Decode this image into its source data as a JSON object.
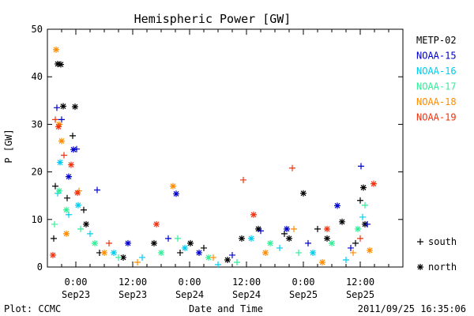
{
  "chart_data": {
    "type": "scatter",
    "title": "Hemispheric Power [GW]",
    "ylabel": "P [GW]",
    "xlabel": "Date and Time",
    "ylim": [
      0,
      50
    ],
    "yticks": [
      0,
      10,
      20,
      30,
      40,
      50
    ],
    "xlim": [
      "2011-09-22 18:00",
      "2011-09-25 21:00"
    ],
    "xticks": [
      {
        "t": "2011-09-23 00:00",
        "time": "0:00",
        "date": "Sep23"
      },
      {
        "t": "2011-09-23 12:00",
        "time": "12:00",
        "date": "Sep23"
      },
      {
        "t": "2011-09-24 00:00",
        "time": "0:00",
        "date": "Sep24"
      },
      {
        "t": "2011-09-24 12:00",
        "time": "12:00",
        "date": "Sep24"
      },
      {
        "t": "2011-09-25 00:00",
        "time": "0:00",
        "date": "Sep25"
      },
      {
        "t": "2011-09-25 12:00",
        "time": "12:00",
        "date": "Sep25"
      }
    ],
    "grid": false,
    "legend_position": "right",
    "marker_legend": [
      {
        "marker": "plus",
        "label": "south"
      },
      {
        "marker": "asterisk",
        "label": "north"
      }
    ],
    "series": [
      {
        "name": "METP-02",
        "color": "#000000",
        "points": [
          {
            "x": "2011-09-22 19:20",
            "y": 6,
            "m": "s"
          },
          {
            "x": "2011-09-22 19:40",
            "y": 17,
            "m": "s"
          },
          {
            "x": "2011-09-22 20:10",
            "y": 42.7,
            "m": "n"
          },
          {
            "x": "2011-09-22 20:50",
            "y": 42.6,
            "m": "n"
          },
          {
            "x": "2011-09-22 21:20",
            "y": 33.8,
            "m": "n"
          },
          {
            "x": "2011-09-22 22:10",
            "y": 14.5,
            "m": "s"
          },
          {
            "x": "2011-09-22 23:20",
            "y": 27.6,
            "m": "s"
          },
          {
            "x": "2011-09-22 23:50",
            "y": 33.7,
            "m": "n"
          },
          {
            "x": "2011-09-23 01:40",
            "y": 12,
            "m": "s"
          },
          {
            "x": "2011-09-23 02:10",
            "y": 9,
            "m": "n"
          },
          {
            "x": "2011-09-23 05:00",
            "y": 3,
            "m": "s"
          },
          {
            "x": "2011-09-23 10:00",
            "y": 2,
            "m": "n"
          },
          {
            "x": "2011-09-23 16:30",
            "y": 5,
            "m": "n"
          },
          {
            "x": "2011-09-23 22:00",
            "y": 3,
            "m": "s"
          },
          {
            "x": "2011-09-24 00:10",
            "y": 5,
            "m": "n"
          },
          {
            "x": "2011-09-24 03:00",
            "y": 4,
            "m": "s"
          },
          {
            "x": "2011-09-24 08:00",
            "y": 1.5,
            "m": "n"
          },
          {
            "x": "2011-09-24 11:00",
            "y": 6,
            "m": "n"
          },
          {
            "x": "2011-09-24 14:30",
            "y": 8,
            "m": "n"
          },
          {
            "x": "2011-09-24 20:00",
            "y": 7,
            "m": "s"
          },
          {
            "x": "2011-09-24 21:00",
            "y": 6,
            "m": "n"
          },
          {
            "x": "2011-09-25 00:00",
            "y": 15.5,
            "m": "n"
          },
          {
            "x": "2011-09-25 03:00",
            "y": 8,
            "m": "s"
          },
          {
            "x": "2011-09-25 05:00",
            "y": 6,
            "m": "n"
          },
          {
            "x": "2011-09-25 08:10",
            "y": 9.5,
            "m": "n"
          },
          {
            "x": "2011-09-25 11:00",
            "y": 5,
            "m": "s"
          },
          {
            "x": "2011-09-25 12:00",
            "y": 14,
            "m": "s"
          },
          {
            "x": "2011-09-25 12:40",
            "y": 16.7,
            "m": "n"
          },
          {
            "x": "2011-09-25 13:00",
            "y": 9,
            "m": "n"
          }
        ]
      },
      {
        "name": "NOAA-15",
        "color": "#0000cd",
        "points": [
          {
            "x": "2011-09-22 20:00",
            "y": 33.5,
            "m": "s"
          },
          {
            "x": "2011-09-22 21:00",
            "y": 31,
            "m": "s"
          },
          {
            "x": "2011-09-22 22:30",
            "y": 19,
            "m": "n"
          },
          {
            "x": "2011-09-22 23:30",
            "y": 24.7,
            "m": "n"
          },
          {
            "x": "2011-09-23 00:10",
            "y": 24.8,
            "m": "s"
          },
          {
            "x": "2011-09-23 04:30",
            "y": 16.2,
            "m": "s"
          },
          {
            "x": "2011-09-23 11:00",
            "y": 5,
            "m": "n"
          },
          {
            "x": "2011-09-23 19:30",
            "y": 6,
            "m": "s"
          },
          {
            "x": "2011-09-23 21:10",
            "y": 15.4,
            "m": "n"
          },
          {
            "x": "2011-09-24 02:00",
            "y": 3,
            "m": "n"
          },
          {
            "x": "2011-09-24 09:00",
            "y": 2.5,
            "m": "s"
          },
          {
            "x": "2011-09-24 15:00",
            "y": 7.6,
            "m": "s"
          },
          {
            "x": "2011-09-24 20:30",
            "y": 8,
            "m": "n"
          },
          {
            "x": "2011-09-25 01:00",
            "y": 5,
            "m": "s"
          },
          {
            "x": "2011-09-25 07:10",
            "y": 12.9,
            "m": "n"
          },
          {
            "x": "2011-09-25 10:00",
            "y": 4,
            "m": "s"
          },
          {
            "x": "2011-09-25 12:10",
            "y": 21.2,
            "m": "s"
          },
          {
            "x": "2011-09-25 13:30",
            "y": 9,
            "m": "s"
          }
        ]
      },
      {
        "name": "NOAA-16",
        "color": "#00cdee",
        "points": [
          {
            "x": "2011-09-22 20:10",
            "y": 15.5,
            "m": "s"
          },
          {
            "x": "2011-09-22 20:40",
            "y": 22,
            "m": "n"
          },
          {
            "x": "2011-09-22 22:30",
            "y": 11,
            "m": "s"
          },
          {
            "x": "2011-09-23 00:30",
            "y": 13,
            "m": "n"
          },
          {
            "x": "2011-09-23 03:00",
            "y": 7,
            "m": "s"
          },
          {
            "x": "2011-09-23 08:00",
            "y": 3,
            "m": "n"
          },
          {
            "x": "2011-09-23 14:00",
            "y": 2,
            "m": "s"
          },
          {
            "x": "2011-09-23 23:00",
            "y": 4,
            "m": "n"
          },
          {
            "x": "2011-09-24 06:00",
            "y": 0.5,
            "m": "s"
          },
          {
            "x": "2011-09-24 13:00",
            "y": 6,
            "m": "n"
          },
          {
            "x": "2011-09-24 19:00",
            "y": 4,
            "m": "s"
          },
          {
            "x": "2011-09-25 02:00",
            "y": 3,
            "m": "n"
          },
          {
            "x": "2011-09-25 09:00",
            "y": 1.5,
            "m": "s"
          },
          {
            "x": "2011-09-25 12:30",
            "y": 10.5,
            "m": "s"
          }
        ]
      },
      {
        "name": "NOAA-17",
        "color": "#33ee99",
        "points": [
          {
            "x": "2011-09-22 19:30",
            "y": 9,
            "m": "s"
          },
          {
            "x": "2011-09-22 20:30",
            "y": 16,
            "m": "n"
          },
          {
            "x": "2011-09-22 22:00",
            "y": 12,
            "m": "n"
          },
          {
            "x": "2011-09-23 01:00",
            "y": 8,
            "m": "s"
          },
          {
            "x": "2011-09-23 04:00",
            "y": 5,
            "m": "n"
          },
          {
            "x": "2011-09-23 09:00",
            "y": 2,
            "m": "s"
          },
          {
            "x": "2011-09-23 18:00",
            "y": 3,
            "m": "n"
          },
          {
            "x": "2011-09-23 21:30",
            "y": 6,
            "m": "s"
          },
          {
            "x": "2011-09-24 04:00",
            "y": 2,
            "m": "n"
          },
          {
            "x": "2011-09-24 10:00",
            "y": 1,
            "m": "s"
          },
          {
            "x": "2011-09-24 17:00",
            "y": 5,
            "m": "n"
          },
          {
            "x": "2011-09-24 23:00",
            "y": 3,
            "m": "s"
          },
          {
            "x": "2011-09-25 06:00",
            "y": 5,
            "m": "n"
          },
          {
            "x": "2011-09-25 11:30",
            "y": 8,
            "m": "n"
          },
          {
            "x": "2011-09-25 13:00",
            "y": 13,
            "m": "s"
          }
        ]
      },
      {
        "name": "NOAA-18",
        "color": "#ff8c00",
        "points": [
          {
            "x": "2011-09-22 19:50",
            "y": 45.7,
            "m": "n"
          },
          {
            "x": "2011-09-22 20:30",
            "y": 30,
            "m": "n"
          },
          {
            "x": "2011-09-22 21:00",
            "y": 26.5,
            "m": "n"
          },
          {
            "x": "2011-09-22 22:00",
            "y": 7,
            "m": "n"
          },
          {
            "x": "2011-09-23 00:40",
            "y": 16,
            "m": "s"
          },
          {
            "x": "2011-09-23 06:00",
            "y": 3,
            "m": "n"
          },
          {
            "x": "2011-09-23 13:00",
            "y": 1,
            "m": "s"
          },
          {
            "x": "2011-09-23 20:30",
            "y": 17,
            "m": "n"
          },
          {
            "x": "2011-09-24 05:00",
            "y": 2,
            "m": "s"
          },
          {
            "x": "2011-09-24 16:00",
            "y": 3,
            "m": "n"
          },
          {
            "x": "2011-09-24 22:00",
            "y": 8,
            "m": "s"
          },
          {
            "x": "2011-09-25 04:00",
            "y": 1,
            "m": "n"
          },
          {
            "x": "2011-09-25 10:30",
            "y": 3,
            "m": "s"
          },
          {
            "x": "2011-09-25 14:00",
            "y": 3.5,
            "m": "n"
          }
        ]
      },
      {
        "name": "NOAA-19",
        "color": "#ee3311",
        "points": [
          {
            "x": "2011-09-22 19:10",
            "y": 2.5,
            "m": "n"
          },
          {
            "x": "2011-09-22 19:40",
            "y": 31,
            "m": "s"
          },
          {
            "x": "2011-09-22 20:20",
            "y": 29.5,
            "m": "n"
          },
          {
            "x": "2011-09-22 21:30",
            "y": 23.5,
            "m": "s"
          },
          {
            "x": "2011-09-22 23:00",
            "y": 21.5,
            "m": "n"
          },
          {
            "x": "2011-09-23 00:20",
            "y": 15.6,
            "m": "n"
          },
          {
            "x": "2011-09-23 07:00",
            "y": 5,
            "m": "s"
          },
          {
            "x": "2011-09-23 17:00",
            "y": 9,
            "m": "n"
          },
          {
            "x": "2011-09-24 11:20",
            "y": 18.3,
            "m": "s"
          },
          {
            "x": "2011-09-24 13:30",
            "y": 11,
            "m": "n"
          },
          {
            "x": "2011-09-24 21:40",
            "y": 20.8,
            "m": "s"
          },
          {
            "x": "2011-09-25 05:00",
            "y": 8,
            "m": "n"
          },
          {
            "x": "2011-09-25 12:00",
            "y": 6,
            "m": "s"
          },
          {
            "x": "2011-09-25 14:50",
            "y": 17.5,
            "m": "n"
          }
        ]
      }
    ]
  },
  "footer": {
    "left": "Plot: CCMC",
    "right": "2011/09/25 16:35:06"
  }
}
